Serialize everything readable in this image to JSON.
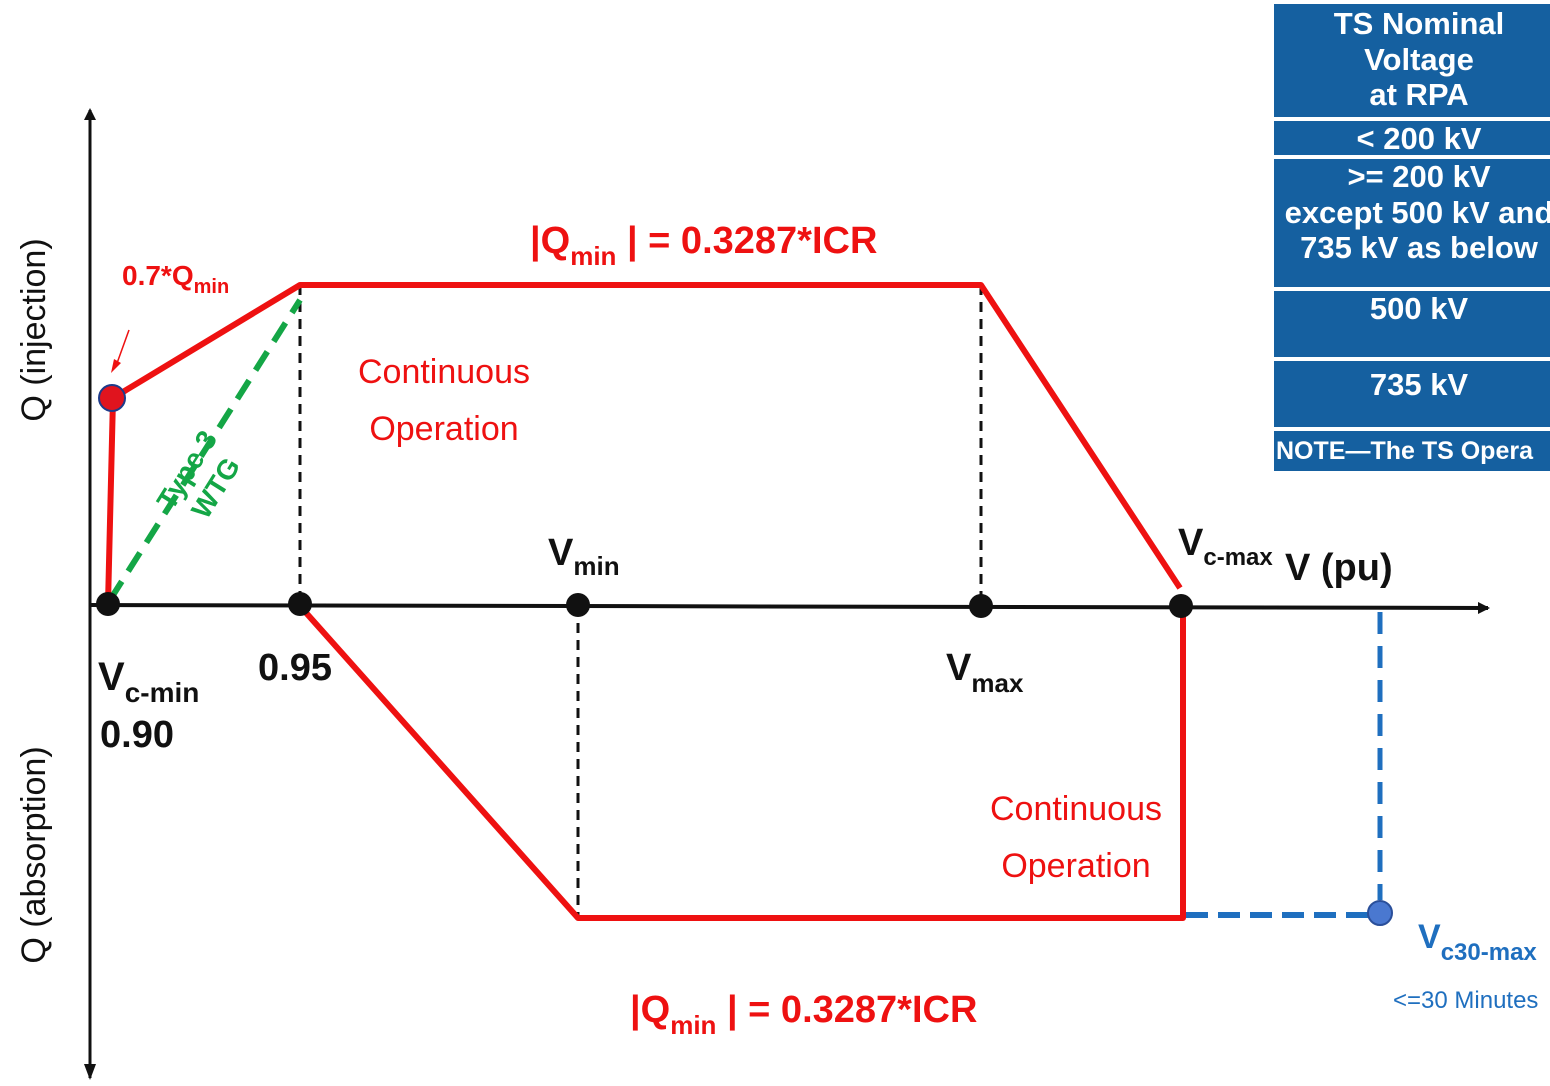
{
  "axes": {
    "y_top_label": "Q (injection)",
    "y_bottom_label": "Q (absorption)",
    "x_label": "V (pu)"
  },
  "labels": {
    "qmin_top": {
      "pre": "|Q",
      "sub": "min",
      "post": " | = 0.3287*ICR"
    },
    "qmin_bottom": {
      "pre": "|Q",
      "sub": "min",
      "post": " | = 0.3287*ICR"
    },
    "seven_qmin": {
      "pre": "0.7*Q",
      "sub": "min"
    },
    "cont_op_top": [
      "Continuous",
      "Operation"
    ],
    "cont_op_bottom": [
      "Continuous",
      "Operation"
    ],
    "type3": [
      "Type 3",
      "WTG"
    ],
    "v_min": {
      "pre": "V",
      "sub": "min"
    },
    "v_max": {
      "pre": "V",
      "sub": "max"
    },
    "v_cmin": {
      "pre": "V",
      "sub": "c-min"
    },
    "v_cmin_value": "0.90",
    "v_095": "0.95",
    "v_cmax": {
      "pre": "V",
      "sub": "c-max"
    },
    "v_c30max": {
      "pre": "V",
      "sub": "c30-max"
    },
    "v_c30max_note": "<=30 Minutes"
  },
  "table": {
    "header": [
      "TS Nominal",
      "Voltage",
      "at RPA"
    ],
    "rows": [
      [
        "< 200 kV"
      ],
      [
        ">= 200 kV",
        "except 500 kV and",
        "735 kV as below"
      ],
      [
        "500 kV"
      ],
      [
        "735 kV"
      ],
      [
        "NOTE—The TS Opera"
      ]
    ]
  },
  "colors": {
    "curve": "#ee1111",
    "axis": "#111111",
    "type3_line": "#14a646",
    "c30_line": "#1f6fbf",
    "table_bg": "#1560a0"
  }
}
